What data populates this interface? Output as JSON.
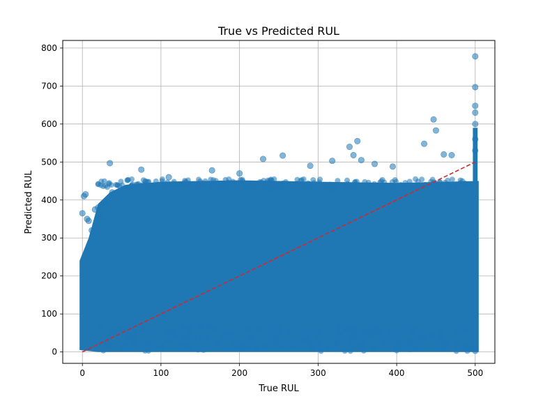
{
  "chart_data": {
    "type": "scatter",
    "title": "True vs Predicted RUL",
    "xlabel": "True RUL",
    "ylabel": "Predicted RUL",
    "xlim": [
      -25,
      525
    ],
    "ylim": [
      -30,
      820
    ],
    "xticks": [
      0,
      100,
      200,
      300,
      400,
      500
    ],
    "yticks": [
      0,
      100,
      200,
      300,
      400,
      500,
      600,
      700,
      800
    ],
    "grid": true,
    "colors": {
      "points": "#1f77b4",
      "reference_line": "#d62728"
    },
    "reference_line": {
      "style": "dashed",
      "from": [
        0,
        0
      ],
      "to": [
        500,
        500
      ]
    },
    "dense_band": {
      "x_range": [
        0,
        500
      ],
      "y_range": [
        0,
        450
      ]
    },
    "points": [
      [
        0,
        365
      ],
      [
        2,
        410
      ],
      [
        4,
        415
      ],
      [
        6,
        350
      ],
      [
        8,
        345
      ],
      [
        12,
        320
      ],
      [
        16,
        375
      ],
      [
        20,
        380
      ],
      [
        24,
        355
      ],
      [
        28,
        390
      ],
      [
        35,
        497
      ],
      [
        38,
        420
      ],
      [
        75,
        480
      ],
      [
        110,
        460
      ],
      [
        165,
        478
      ],
      [
        200,
        470
      ],
      [
        230,
        508
      ],
      [
        255,
        517
      ],
      [
        290,
        490
      ],
      [
        318,
        503
      ],
      [
        340,
        540
      ],
      [
        350,
        555
      ],
      [
        345,
        518
      ],
      [
        355,
        505
      ],
      [
        372,
        495
      ],
      [
        395,
        488
      ],
      [
        435,
        548
      ],
      [
        447,
        612
      ],
      [
        450,
        583
      ],
      [
        460,
        520
      ],
      [
        470,
        518
      ],
      [
        500,
        778
      ],
      [
        500,
        697
      ],
      [
        500,
        648
      ],
      [
        500,
        630
      ],
      [
        500,
        600
      ],
      [
        500,
        560
      ],
      [
        500,
        530
      ],
      [
        40,
        20
      ],
      [
        55,
        18
      ],
      [
        110,
        28
      ],
      [
        180,
        40
      ],
      [
        240,
        35
      ],
      [
        255,
        15
      ],
      [
        285,
        30
      ],
      [
        318,
        20
      ],
      [
        345,
        35
      ],
      [
        358,
        18
      ],
      [
        372,
        52
      ],
      [
        390,
        30
      ],
      [
        418,
        25
      ],
      [
        475,
        50
      ],
      [
        500,
        8
      ],
      [
        500,
        3
      ]
    ]
  }
}
